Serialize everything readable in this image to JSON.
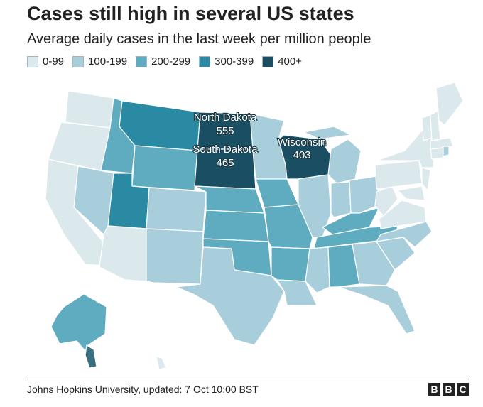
{
  "title": "Cases still high in several US states",
  "subtitle": "Average daily cases in the last week per million people",
  "legend": [
    {
      "label": "0-99",
      "color": "#dbe8ec"
    },
    {
      "label": "100-199",
      "color": "#a9cedb"
    },
    {
      "label": "200-299",
      "color": "#5fabc0"
    },
    {
      "label": "300-399",
      "color": "#2b8aa3"
    },
    {
      "label": "400+",
      "color": "#1a4f63"
    }
  ],
  "annotations": [
    {
      "state": "North Dakota",
      "value": "555"
    },
    {
      "state": "South Dakota",
      "value": "465"
    },
    {
      "state": "Wisconsin",
      "value": "403"
    }
  ],
  "source": "Johns Hopkins University, updated: 7 Oct 10:00 BST",
  "logo": [
    "B",
    "B",
    "C"
  ]
}
